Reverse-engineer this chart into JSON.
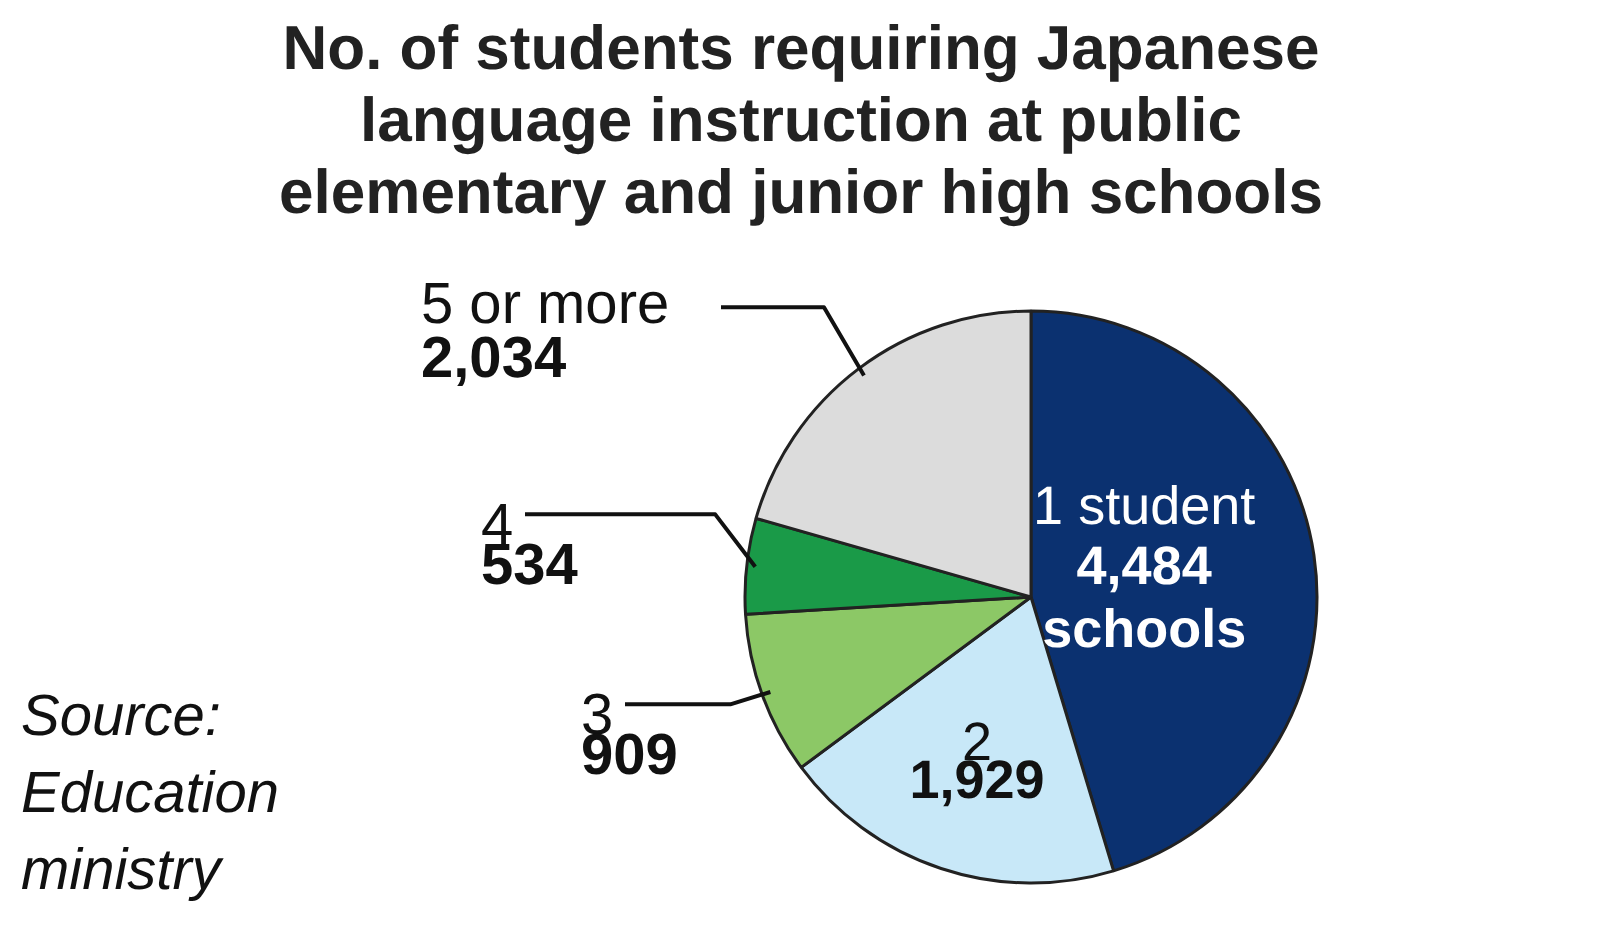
{
  "chart_data": {
    "type": "pie",
    "title": "No. of students requiring Japanese language instruction at public elementary and junior high schools",
    "categories": [
      "1 student",
      "2",
      "3",
      "4",
      "5 or more"
    ],
    "values": [
      4484,
      1929,
      909,
      534,
      2034
    ],
    "value_labels": [
      "4,484\nschools",
      "1,929",
      "909",
      "534",
      "2,034"
    ],
    "colors": [
      "#0b3170",
      "#c8e8f8",
      "#8cc866",
      "#1a9a48",
      "#dcdcdc"
    ],
    "annotations": [
      "Source:\nEducation\nministry"
    ]
  }
}
